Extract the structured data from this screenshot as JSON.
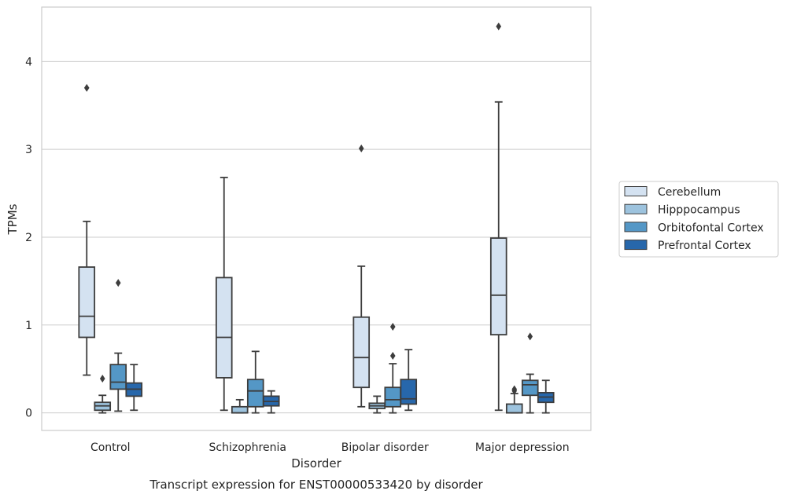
{
  "chart_data": {
    "type": "box",
    "caption": "Transcript expression for ENST00000533420 by disorder",
    "xlabel": "Disorder",
    "ylabel": "TPMs",
    "ylim": [
      -0.2,
      4.62
    ],
    "yticks": [
      0,
      1,
      2,
      3,
      4
    ],
    "grid": "horizontal",
    "legend_position": "right",
    "categories": [
      "Control",
      "Schizophrenia",
      "Bipolar disorder",
      "Major depression"
    ],
    "series": [
      {
        "name": "Cerebellum",
        "color": "#d4e2f1",
        "boxes": [
          {
            "whisker_low": 0.43,
            "q1": 0.86,
            "median": 1.1,
            "q3": 1.66,
            "whisker_high": 2.18,
            "outliers": [
              3.7
            ]
          },
          {
            "whisker_low": 0.03,
            "q1": 0.4,
            "median": 0.86,
            "q3": 1.54,
            "whisker_high": 2.68,
            "outliers": []
          },
          {
            "whisker_low": 0.07,
            "q1": 0.29,
            "median": 0.63,
            "q3": 1.09,
            "whisker_high": 1.67,
            "outliers": [
              3.01
            ]
          },
          {
            "whisker_low": 0.03,
            "q1": 0.89,
            "median": 1.34,
            "q3": 1.99,
            "whisker_high": 3.54,
            "outliers": [
              4.4
            ]
          }
        ]
      },
      {
        "name": "Hipppocampus",
        "color": "#9dc3de",
        "boxes": [
          {
            "whisker_low": 0.0,
            "q1": 0.03,
            "median": 0.08,
            "q3": 0.12,
            "whisker_high": 0.2,
            "outliers": [
              0.39
            ]
          },
          {
            "whisker_low": 0.0,
            "q1": 0.0,
            "median": 0.0,
            "q3": 0.07,
            "whisker_high": 0.15,
            "outliers": []
          },
          {
            "whisker_low": 0.0,
            "q1": 0.05,
            "median": 0.08,
            "q3": 0.11,
            "whisker_high": 0.19,
            "outliers": []
          },
          {
            "whisker_low": 0.0,
            "q1": 0.0,
            "median": 0.0,
            "q3": 0.1,
            "whisker_high": 0.22,
            "outliers": [
              0.27,
              0.25
            ]
          }
        ]
      },
      {
        "name": "Orbitofontal Cortex",
        "color": "#5497c6",
        "boxes": [
          {
            "whisker_low": 0.02,
            "q1": 0.27,
            "median": 0.35,
            "q3": 0.55,
            "whisker_high": 0.68,
            "outliers": [
              1.48
            ]
          },
          {
            "whisker_low": 0.0,
            "q1": 0.07,
            "median": 0.25,
            "q3": 0.38,
            "whisker_high": 0.7,
            "outliers": []
          },
          {
            "whisker_low": 0.0,
            "q1": 0.07,
            "median": 0.15,
            "q3": 0.29,
            "whisker_high": 0.56,
            "outliers": [
              0.65,
              0.98
            ]
          },
          {
            "whisker_low": 0.0,
            "q1": 0.2,
            "median": 0.32,
            "q3": 0.37,
            "whisker_high": 0.44,
            "outliers": [
              0.87
            ]
          }
        ]
      },
      {
        "name": "Prefrontal Cortex",
        "color": "#2767ab",
        "boxes": [
          {
            "whisker_low": 0.03,
            "q1": 0.19,
            "median": 0.27,
            "q3": 0.34,
            "whisker_high": 0.55,
            "outliers": []
          },
          {
            "whisker_low": 0.0,
            "q1": 0.08,
            "median": 0.13,
            "q3": 0.19,
            "whisker_high": 0.25,
            "outliers": []
          },
          {
            "whisker_low": 0.03,
            "q1": 0.1,
            "median": 0.16,
            "q3": 0.38,
            "whisker_high": 0.72,
            "outliers": []
          },
          {
            "whisker_low": 0.0,
            "q1": 0.12,
            "median": 0.18,
            "q3": 0.23,
            "whisker_high": 0.37,
            "outliers": []
          }
        ]
      }
    ]
  }
}
